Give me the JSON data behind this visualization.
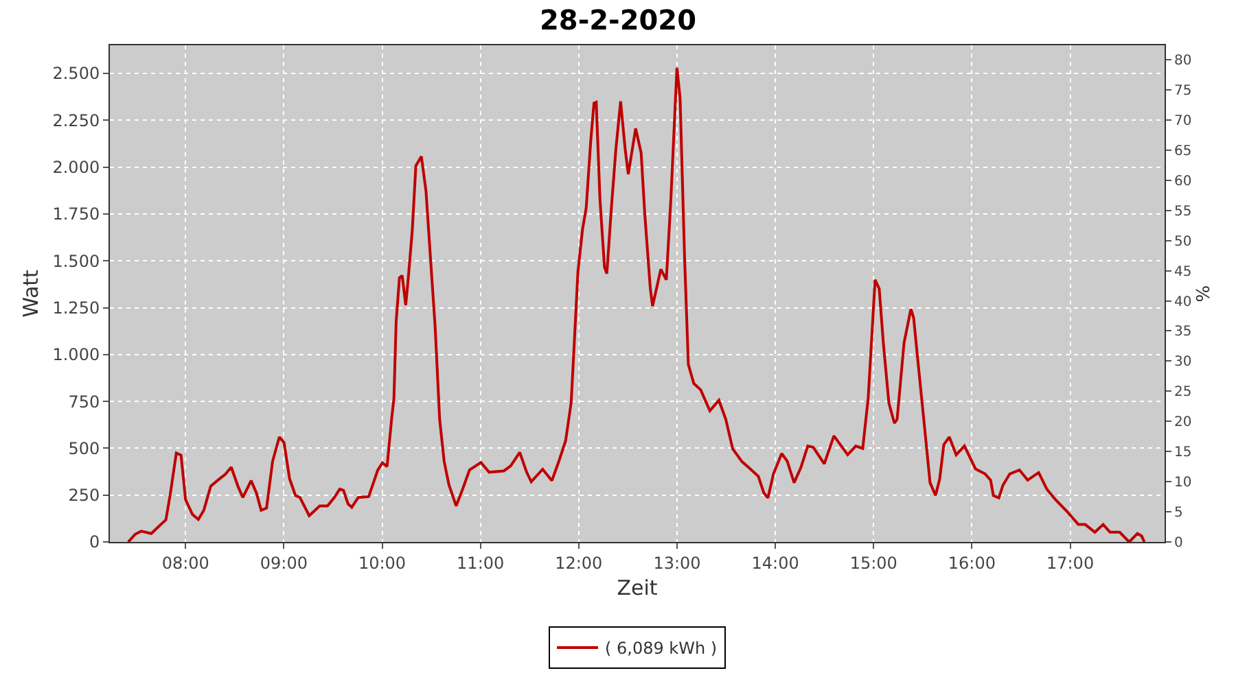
{
  "chart_data": {
    "type": "line",
    "title": "28-2-2020",
    "xlabel": "Zeit",
    "ylabel": "Watt",
    "y2label": "%",
    "x": [
      7.417,
      7.487,
      7.549,
      7.651,
      7.744,
      7.8,
      7.846,
      7.906,
      7.954,
      8.0,
      8.07,
      8.13,
      8.186,
      8.256,
      8.349,
      8.405,
      8.465,
      8.535,
      8.583,
      8.667,
      8.722,
      8.769,
      8.824,
      8.885,
      8.954,
      9.002,
      9.058,
      9.118,
      9.164,
      9.258,
      9.365,
      9.444,
      9.513,
      9.569,
      9.607,
      9.653,
      9.691,
      9.757,
      9.863,
      9.956,
      10.003,
      10.05,
      10.096,
      10.12,
      10.142,
      10.176,
      10.204,
      10.24,
      10.268,
      10.306,
      10.343,
      10.399,
      10.446,
      10.492,
      10.539,
      10.585,
      10.631,
      10.679,
      10.753,
      10.819,
      10.889,
      11.005,
      11.088,
      11.238,
      11.308,
      11.4,
      11.47,
      11.517,
      11.633,
      11.727,
      11.797,
      11.867,
      11.923,
      11.959,
      11.992,
      12.039,
      12.076,
      12.122,
      12.155,
      12.178,
      12.216,
      12.262,
      12.286,
      12.332,
      12.378,
      12.426,
      12.472,
      12.504,
      12.579,
      12.635,
      12.672,
      12.728,
      12.751,
      12.835,
      12.891,
      12.937,
      12.999,
      13.031,
      13.077,
      13.115,
      13.17,
      13.24,
      13.334,
      13.426,
      13.496,
      13.566,
      13.66,
      13.729,
      13.827,
      13.883,
      13.925,
      13.981,
      14.065,
      14.121,
      14.191,
      14.26,
      14.33,
      14.386,
      14.498,
      14.596,
      14.736,
      14.819,
      14.889,
      14.945,
      14.987,
      15.015,
      15.057,
      15.099,
      15.155,
      15.211,
      15.239,
      15.309,
      15.379,
      15.407,
      15.449,
      15.519,
      15.574,
      15.63,
      15.672,
      15.714,
      15.77,
      15.84,
      15.924,
      16.036,
      16.134,
      16.19,
      16.218,
      16.274,
      16.315,
      16.385,
      16.483,
      16.567,
      16.679,
      16.762,
      16.846,
      16.972,
      17.083,
      17.153,
      17.251,
      17.335,
      17.405,
      17.503,
      17.6,
      17.684,
      17.726,
      17.754
    ],
    "series": [
      {
        "name": "( 6,089 kWh )",
        "color": "#bf0000",
        "values": [
          0,
          41,
          57,
          45,
          91,
          118,
          260,
          474,
          463,
          226,
          147,
          120,
          169,
          298,
          338,
          361,
          399,
          294,
          237,
          327,
          260,
          169,
          181,
          429,
          560,
          530,
          338,
          248,
          237,
          140,
          192,
          192,
          237,
          282,
          275,
          203,
          185,
          237,
          242,
          384,
          422,
          402,
          654,
          767,
          1173,
          1410,
          1421,
          1263,
          1421,
          1658,
          2007,
          2057,
          1872,
          1512,
          1150,
          654,
          429,
          306,
          192,
          282,
          384,
          424,
          372,
          379,
          406,
          478,
          372,
          321,
          388,
          327,
          429,
          541,
          744,
          1106,
          1444,
          1669,
          1782,
          2140,
          2341,
          2346,
          1827,
          1466,
          1432,
          1782,
          2097,
          2351,
          2097,
          1962,
          2206,
          2075,
          1748,
          1353,
          1258,
          1455,
          1399,
          1827,
          2530,
          2368,
          1512,
          947,
          846,
          812,
          700,
          756,
          654,
          497,
          429,
          397,
          350,
          262,
          235,
          363,
          472,
          431,
          316,
          397,
          512,
          505,
          417,
          566,
          465,
          512,
          499,
          769,
          1148,
          1399,
          1351,
          1060,
          742,
          634,
          654,
          1060,
          1243,
          1196,
          972,
          607,
          316,
          248,
          336,
          519,
          560,
          465,
          512,
          390,
          363,
          330,
          248,
          235,
          302,
          363,
          384,
          330,
          370,
          282,
          228,
          160,
          93,
          93,
          52,
          93,
          52,
          52,
          0,
          45,
          32,
          0
        ]
      }
    ],
    "xlim": [
      7.23,
      17.96
    ],
    "xticks": [
      {
        "value": 8,
        "label": "08:00"
      },
      {
        "value": 9,
        "label": "09:00"
      },
      {
        "value": 10,
        "label": "10:00"
      },
      {
        "value": 11,
        "label": "11:00"
      },
      {
        "value": 12,
        "label": "12:00"
      },
      {
        "value": 13,
        "label": "13:00"
      },
      {
        "value": 14,
        "label": "14:00"
      },
      {
        "value": 15,
        "label": "15:00"
      },
      {
        "value": 16,
        "label": "16:00"
      },
      {
        "value": 17,
        "label": "17:00"
      }
    ],
    "ylim": [
      0,
      2650
    ],
    "yticks": [
      0,
      250,
      500,
      750,
      {
        "value": 1000,
        "label": "1.000"
      },
      {
        "value": 1250,
        "label": "1.250"
      },
      {
        "value": 1500,
        "label": "1.500"
      },
      {
        "value": 1750,
        "label": "1.750"
      },
      {
        "value": 2000,
        "label": "2.000"
      },
      {
        "value": 2250,
        "label": "2.250"
      },
      {
        "value": 2500,
        "label": "2.500"
      }
    ],
    "y2lim": [
      0,
      82.4
    ],
    "y2ticks": [
      0,
      5,
      10,
      15,
      20,
      25,
      30,
      35,
      40,
      45,
      50,
      55,
      60,
      65,
      70,
      75,
      80
    ],
    "grid": true,
    "legend": "bottom",
    "marker": "none",
    "line_style": "solid"
  }
}
